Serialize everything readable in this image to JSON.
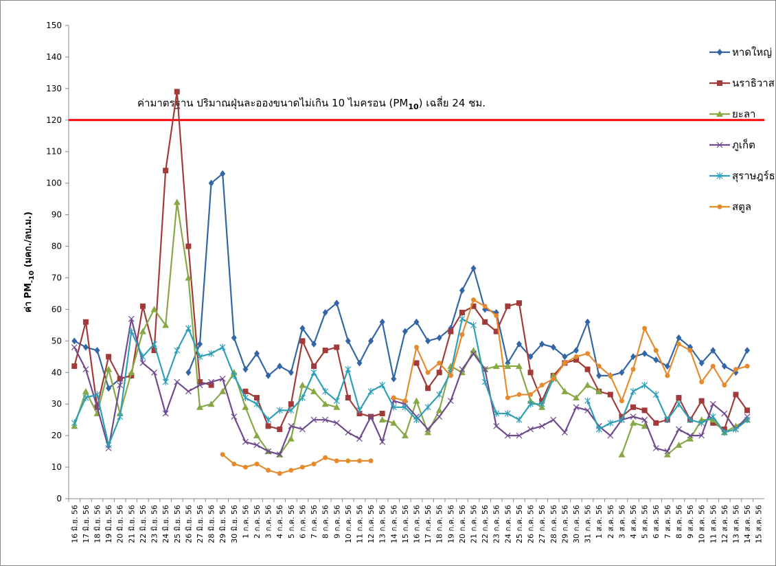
{
  "chart_data": {
    "type": "line",
    "y_label_parts": [
      "ค่า PM",
      "-10",
      " (มคก./ลบ.ม.)"
    ],
    "categories": [
      "16 มิ.ย. 56",
      "17 มิ.ย. 56",
      "18 มิ.ย. 56",
      "19 มิ.ย. 56",
      "20 มิ.ย. 56",
      "21 มิ.ย. 56",
      "22 มิ.ย. 56",
      "23 มิ.ย. 56",
      "24 มิ.ย. 56",
      "25 มิ.ย. 56",
      "26 มิ.ย. 56",
      "27 มิ.ย. 56",
      "28 มิ.ย. 56",
      "29 มิ.ย. 56",
      "30 มิ.ย. 56",
      "1 ก.ค. 56",
      "2 ก.ค. 56",
      "3 ก.ค. 56",
      "4 ก.ค. 56",
      "5 ก.ค. 56",
      "6 ก.ค. 56",
      "7 ก.ค. 56",
      "8 ก.ค. 56",
      "9 ก.ค. 56",
      "10 ก.ค. 56",
      "11 ก.ค. 56",
      "12 ก.ค. 56",
      "13 ก.ค. 56",
      "14 ก.ค. 56",
      "15 ก.ค. 56",
      "16 ก.ค. 56",
      "17 ก.ค. 56",
      "18 ก.ค. 56",
      "19 ก.ค. 56",
      "20 ก.ค. 56",
      "21 ก.ค. 56",
      "22 ก.ค. 56",
      "23 ก.ค. 56",
      "24 ก.ค. 56",
      "25 ก.ค. 56",
      "26 ก.ค. 56",
      "27 ก.ค. 56",
      "28 ก.ค. 56",
      "29 ก.ค. 56",
      "30 ก.ค. 56",
      "31 ก.ค. 56",
      "1 ส.ค. 56",
      "2 ส.ค. 56",
      "3 ส.ค. 56",
      "4 ส.ค. 56",
      "5 ส.ค. 56",
      "6 ส.ค. 56",
      "7 ส.ค. 56",
      "8 ส.ค. 56",
      "9 ส.ค. 56",
      "10 ส.ค. 56",
      "11 ส.ค. 56",
      "12 ส.ค. 56",
      "13 ส.ค. 56",
      "14 ส.ค. 56",
      "15 ส.ค. 56"
    ],
    "series": [
      {
        "name": "หาดใหญ่",
        "color": "#3465a4",
        "marker": "diamond",
        "values": [
          50,
          48,
          47,
          35,
          38,
          39,
          null,
          null,
          null,
          null,
          40,
          49,
          100,
          103,
          51,
          41,
          46,
          39,
          42,
          40,
          54,
          49,
          59,
          62,
          50,
          43,
          50,
          56,
          38,
          53,
          56,
          50,
          51,
          54,
          66,
          73,
          60,
          59,
          43,
          49,
          45,
          49,
          48,
          45,
          47,
          56,
          39,
          39,
          40,
          45,
          46,
          44,
          42,
          51,
          48,
          43,
          47,
          42,
          40,
          47,
          null
        ]
      },
      {
        "name": "นราธิวาส",
        "color": "#a33a3a",
        "marker": "square",
        "values": [
          42,
          56,
          29,
          45,
          38,
          39,
          61,
          47,
          104,
          129,
          80,
          37,
          36,
          null,
          null,
          34,
          32,
          23,
          22,
          30,
          50,
          42,
          47,
          48,
          32,
          27,
          26,
          27,
          null,
          null,
          43,
          35,
          40,
          53,
          59,
          61,
          56,
          53,
          61,
          62,
          40,
          31,
          39,
          43,
          44,
          41,
          34,
          33,
          26,
          29,
          28,
          24,
          25,
          32,
          25,
          31,
          24,
          22,
          33,
          28,
          null
        ]
      },
      {
        "name": "ยะลา",
        "color": "#86a845",
        "marker": "triangle",
        "values": [
          23,
          34,
          27,
          41,
          27,
          40,
          53,
          60,
          55,
          94,
          70,
          29,
          30,
          34,
          40,
          29,
          20,
          15,
          14,
          19,
          36,
          34,
          30,
          29,
          null,
          null,
          null,
          25,
          24,
          20,
          31,
          21,
          28,
          42,
          40,
          47,
          41,
          42,
          42,
          42,
          31,
          29,
          39,
          34,
          32,
          36,
          34,
          null,
          14,
          24,
          23,
          null,
          14,
          17,
          19,
          25,
          25,
          21,
          23,
          25,
          null
        ]
      },
      {
        "name": "ภูเก็ต",
        "color": "#6f4a8e",
        "marker": "x",
        "values": [
          48,
          41,
          29,
          16,
          36,
          57,
          43,
          40,
          27,
          37,
          34,
          36,
          37,
          38,
          26,
          18,
          17,
          15,
          14,
          23,
          22,
          25,
          25,
          24,
          21,
          19,
          26,
          18,
          31,
          30,
          26,
          22,
          26,
          31,
          41,
          46,
          41,
          23,
          20,
          20,
          22,
          23,
          25,
          21,
          29,
          28,
          23,
          20,
          25,
          26,
          25,
          16,
          15,
          22,
          20,
          20,
          30,
          27,
          22,
          26,
          null
        ]
      },
      {
        "name": "สุราษฎร์ธานี",
        "color": "#2f9fb8",
        "marker": "star",
        "values": [
          24,
          32,
          33,
          17,
          26,
          53,
          45,
          49,
          37,
          47,
          54,
          45,
          46,
          48,
          39,
          32,
          30,
          25,
          28,
          28,
          32,
          40,
          34,
          31,
          41,
          28,
          34,
          36,
          29,
          29,
          25,
          29,
          33,
          40,
          57,
          55,
          37,
          27,
          27,
          25,
          30,
          30,
          38,
          null,
          null,
          31,
          22,
          24,
          25,
          34,
          36,
          33,
          25,
          30,
          25,
          24,
          26,
          21,
          22,
          25,
          null
        ]
      },
      {
        "name": "สตูล",
        "color": "#e68a2e",
        "marker": "circle",
        "values": [
          null,
          null,
          null,
          null,
          null,
          null,
          null,
          null,
          null,
          null,
          null,
          null,
          null,
          14,
          11,
          10,
          11,
          9,
          8,
          9,
          10,
          11,
          13,
          12,
          12,
          12,
          12,
          null,
          32,
          31,
          48,
          40,
          43,
          39,
          52,
          63,
          61,
          58,
          32,
          33,
          33,
          36,
          38,
          43,
          45,
          46,
          42,
          39,
          31,
          41,
          54,
          47,
          39,
          49,
          47,
          37,
          42,
          36,
          41,
          42,
          null
        ]
      }
    ],
    "reference_line": {
      "value": 120,
      "color": "#ff0000",
      "label_parts": [
        "ค่ามาตรฐาน ปริมาณฝุ่นละอองขนาดไม่เกิน 10 ไมครอน (PM",
        "10",
        ") เฉลี่ย 24 ชม."
      ]
    },
    "ylim": [
      0,
      150
    ],
    "yticks": [
      0,
      10,
      20,
      30,
      40,
      50,
      60,
      70,
      80,
      90,
      100,
      110,
      120,
      130,
      140,
      150
    ],
    "grid": false
  }
}
